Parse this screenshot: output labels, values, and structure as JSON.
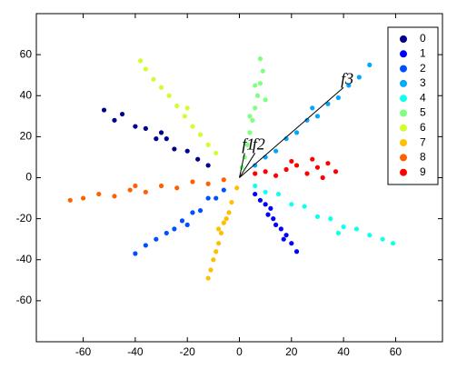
{
  "chart_data": {
    "type": "scatter",
    "xlim": [
      -78,
      78
    ],
    "ylim": [
      -80,
      80
    ],
    "xticks": [
      -60,
      -40,
      -20,
      0,
      20,
      40,
      60
    ],
    "yticks": [
      -60,
      -40,
      -20,
      0,
      20,
      40,
      60
    ],
    "legend": "upper right",
    "series": [
      {
        "name": "0",
        "color": "#00008f",
        "x": [
          -52,
          -48,
          -45,
          -40,
          -36,
          -32,
          -28,
          -25,
          -20,
          -16,
          -12,
          -30
        ],
        "y": [
          33,
          28,
          31,
          25,
          24,
          19,
          19,
          14,
          13,
          9,
          6,
          22
        ]
      },
      {
        "name": "1",
        "color": "#0000ff",
        "x": [
          6,
          8,
          10,
          11,
          13,
          14,
          16,
          18,
          20,
          22,
          12,
          17
        ],
        "y": [
          -8,
          -11,
          -13,
          -18,
          -20,
          -23,
          -25,
          -28,
          -32,
          -36,
          -15,
          -30
        ]
      },
      {
        "name": "2",
        "color": "#0050ff",
        "x": [
          -6,
          -9,
          -12,
          -15,
          -18,
          -22,
          -25,
          -28,
          -32,
          -36,
          -40,
          -20
        ],
        "y": [
          -6,
          -10,
          -10,
          -16,
          -17,
          -21,
          -25,
          -27,
          -30,
          -33,
          -37,
          -23
        ]
      },
      {
        "name": "3",
        "color": "#00a8ff",
        "x": [
          6,
          10,
          14,
          18,
          22,
          26,
          30,
          34,
          38,
          42,
          46,
          50,
          28
        ],
        "y": [
          6,
          10,
          13,
          19,
          22,
          28,
          30,
          36,
          39,
          45,
          49,
          55,
          34
        ]
      },
      {
        "name": "4",
        "color": "#10ffef",
        "x": [
          6,
          10,
          15,
          20,
          25,
          30,
          35,
          40,
          45,
          50,
          55,
          59,
          38
        ],
        "y": [
          -4,
          -7,
          -8,
          -13,
          -14,
          -19,
          -20,
          -24,
          -25,
          -28,
          -30,
          -32,
          -27
        ]
      },
      {
        "name": "5",
        "color": "#80ff80",
        "x": [
          1,
          2,
          3,
          4,
          5,
          6,
          7,
          8,
          9,
          8,
          4,
          10,
          6
        ],
        "y": [
          5,
          10,
          16,
          22,
          28,
          34,
          40,
          46,
          52,
          58,
          30,
          38,
          45
        ]
      },
      {
        "name": "6",
        "color": "#cfff30",
        "x": [
          -9,
          -12,
          -15,
          -18,
          -21,
          -24,
          -27,
          -30,
          -33,
          -36,
          -38,
          -20
        ],
        "y": [
          12,
          16,
          21,
          25,
          30,
          35,
          40,
          44,
          48,
          53,
          57,
          34
        ]
      },
      {
        "name": "7",
        "color": "#ffbf00",
        "x": [
          -1,
          -3,
          -4,
          -6,
          -7,
          -8,
          -9,
          -10,
          -11,
          -12,
          -5,
          -8
        ],
        "y": [
          -5,
          -12,
          -17,
          -22,
          -27,
          -32,
          -36,
          -40,
          -45,
          -49,
          -20,
          -25
        ]
      },
      {
        "name": "8",
        "color": "#ff6000",
        "x": [
          -6,
          -12,
          -18,
          -24,
          -30,
          -36,
          -42,
          -48,
          -54,
          -60,
          -65,
          -40
        ],
        "y": [
          -1,
          -3,
          -2,
          -5,
          -4,
          -7,
          -6,
          -9,
          -8,
          -10,
          -11,
          -4
        ]
      },
      {
        "name": "9",
        "color": "#ff0000",
        "x": [
          6,
          10,
          14,
          18,
          22,
          26,
          30,
          34,
          37,
          20,
          28,
          32
        ],
        "y": [
          2,
          3,
          1,
          4,
          6,
          2,
          5,
          7,
          3,
          8,
          9,
          0
        ]
      }
    ],
    "annotations": [
      {
        "text": "f1",
        "x": 2,
        "y": 12
      },
      {
        "text": "f2",
        "x": 6,
        "y": 12
      },
      {
        "text": "f3",
        "x": 40,
        "y": 44
      }
    ]
  }
}
